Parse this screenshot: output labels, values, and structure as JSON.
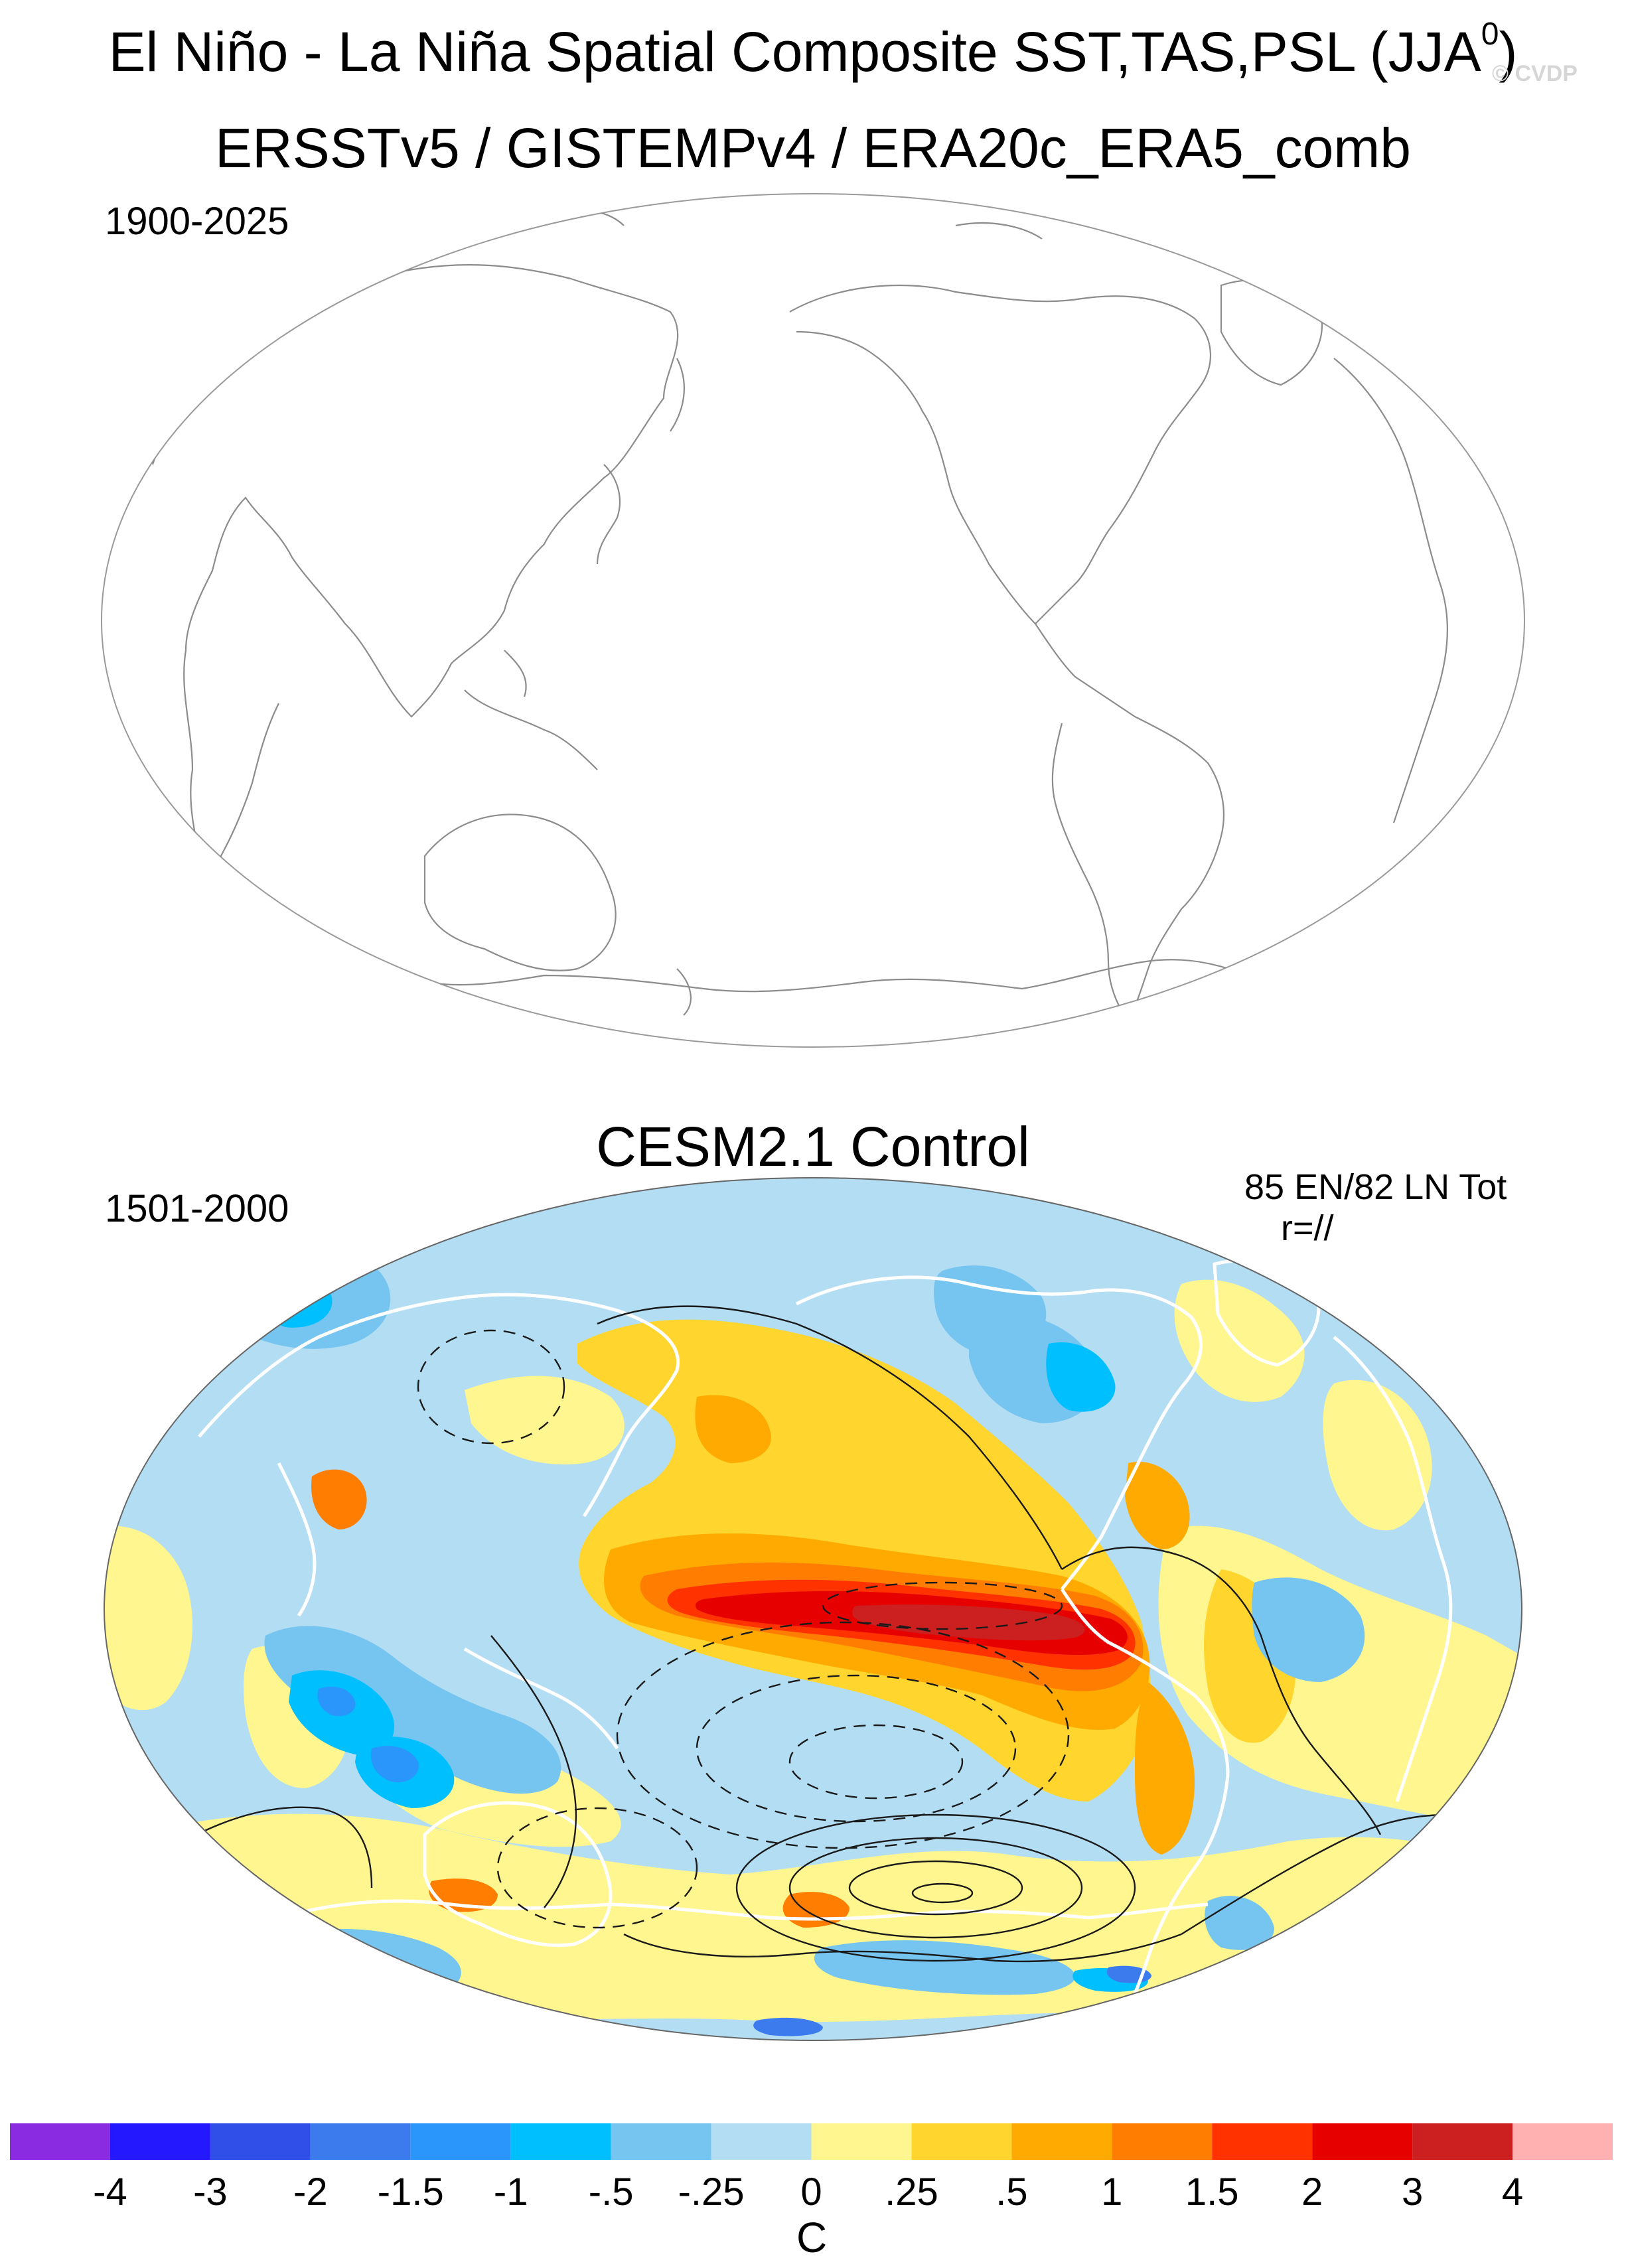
{
  "header": {
    "main_title": "El Niño - La Niña Spatial Composite SST,TAS,PSL (JJA",
    "main_title_superscript": "0",
    "main_title_close": ")",
    "watermark": "© CVDP",
    "dataset_title": "ERSSTv5 / GISTEMPv4 / ERA20c_ERA5_comb"
  },
  "observed_panel": {
    "period": "1900-2025"
  },
  "model_panel": {
    "title": "CESM2.1 Control",
    "period": "1501-2000",
    "event_counts": "85 EN/82 LN Tot",
    "pattern_correlation": "r=//"
  },
  "colorbar": {
    "unit": "C",
    "tick_labels": [
      "-4",
      "-3",
      "-2",
      "-1.5",
      "-1",
      "-.5",
      "-.25",
      "0",
      ".25",
      ".5",
      "1",
      "1.5",
      "2",
      "3",
      "4"
    ],
    "colors": [
      "#8a2be2",
      "#2418ff",
      "#2f4fe8",
      "#3c7bee",
      "#2a95fa",
      "#00bfff",
      "#76c5f0",
      "#b3ddf2",
      "#fff68f",
      "#ffd52e",
      "#ffaa00",
      "#ff7d00",
      "#ff3200",
      "#e60000",
      "#cc1f1f",
      "#ffb0b0"
    ]
  },
  "colors": {
    "land_outline": "#8c8c8c",
    "coast_model": "#ffffff",
    "contour": "#1a1a1a"
  }
}
